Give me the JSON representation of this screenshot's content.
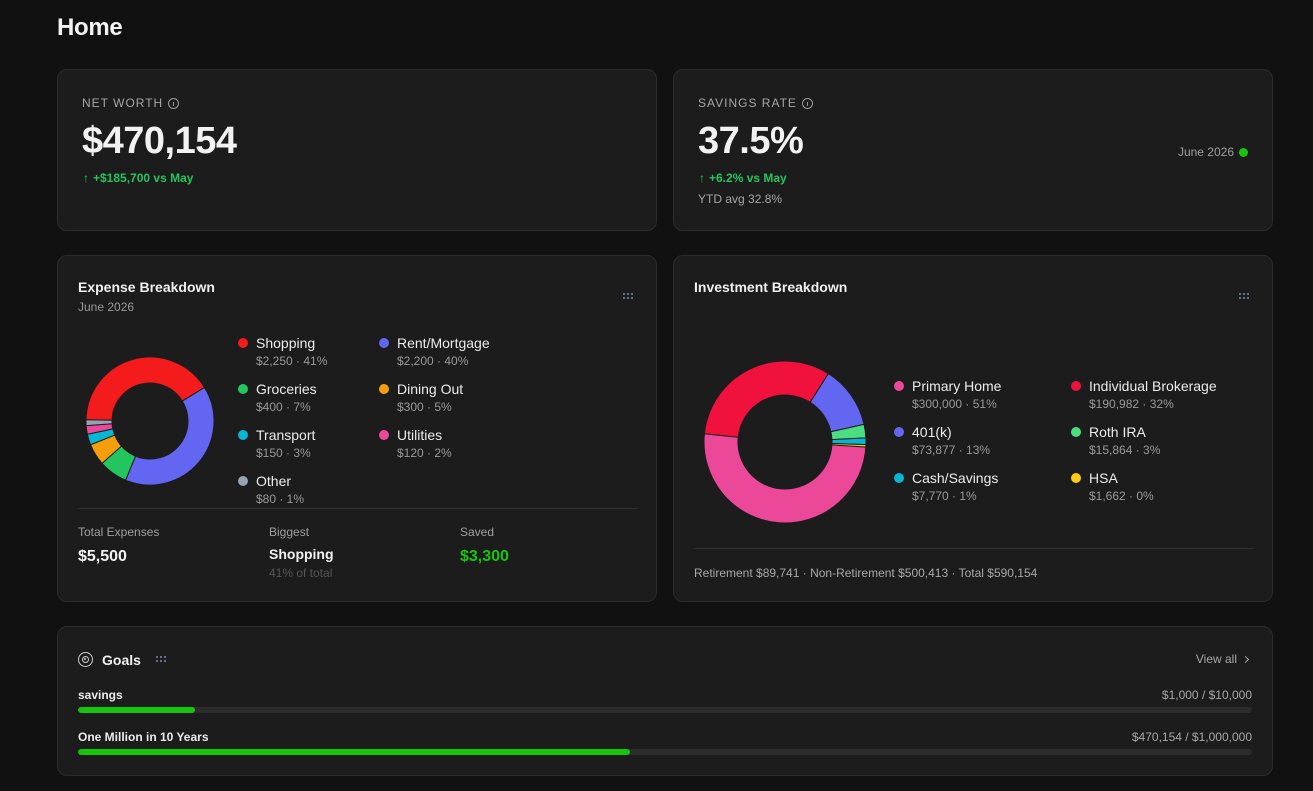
{
  "page": {
    "title": "Home"
  },
  "net_worth": {
    "label": "NET WORTH",
    "value": "$470,154",
    "delta": "+$185,700 vs May"
  },
  "savings_rate": {
    "label": "SAVINGS RATE",
    "value": "37.5%",
    "delta": "+6.2% vs May",
    "ytd": "YTD avg 32.8%",
    "month": "June 2026"
  },
  "expense": {
    "title": "Expense Breakdown",
    "subtitle": "June 2026",
    "items": [
      {
        "name": "Shopping",
        "detail": "$2,250 · 41%"
      },
      {
        "name": "Rent/Mortgage",
        "detail": "$2,200 · 40%"
      },
      {
        "name": "Groceries",
        "detail": "$400 · 7%"
      },
      {
        "name": "Dining Out",
        "detail": "$300 · 5%"
      },
      {
        "name": "Transport",
        "detail": "$150 · 3%"
      },
      {
        "name": "Utilities",
        "detail": "$120 · 2%"
      },
      {
        "name": "Other",
        "detail": "$80 · 1%"
      }
    ],
    "stats": {
      "total_label": "Total Expenses",
      "total_value": "$5,500",
      "biggest_label": "Biggest",
      "biggest_value": "Shopping",
      "biggest_note": "41% of total",
      "saved_label": "Saved",
      "saved_value": "$3,300"
    }
  },
  "investment": {
    "title": "Investment Breakdown",
    "items": [
      {
        "name": "Primary Home",
        "detail": "$300,000 · 51%"
      },
      {
        "name": "Individual Brokerage",
        "detail": "$190,982 · 32%"
      },
      {
        "name": "401(k)",
        "detail": "$73,877 · 13%"
      },
      {
        "name": "Roth IRA",
        "detail": "$15,864 · 3%"
      },
      {
        "name": "Cash/Savings",
        "detail": "$7,770 · 1%"
      },
      {
        "name": "HSA",
        "detail": "$1,662 · 0%"
      }
    ],
    "footer": "Retirement $89,741 · Non-Retirement $500,413 · Total $590,154"
  },
  "goals": {
    "title": "Goals",
    "view_all": "View all",
    "items": [
      {
        "label": "savings",
        "amount": "$1,000 / $10,000",
        "progress": 0.1
      },
      {
        "label": "One Million in 10 Years",
        "amount": "$470,154 / $1,000,000",
        "progress": 0.47
      }
    ]
  },
  "chart_data": [
    {
      "type": "pie",
      "title": "Expense Breakdown",
      "categories": [
        "Shopping",
        "Rent/Mortgage",
        "Groceries",
        "Dining Out",
        "Transport",
        "Utilities",
        "Other"
      ],
      "values": [
        2250,
        2200,
        400,
        300,
        150,
        120,
        80
      ],
      "colors": [
        "#f31b1b",
        "#6366f1",
        "#22c55e",
        "#f59e0b",
        "#06b6d4",
        "#ec4899",
        "#94a3b8"
      ]
    },
    {
      "type": "pie",
      "title": "Investment Breakdown",
      "categories": [
        "Primary Home",
        "Individual Brokerage",
        "401(k)",
        "Roth IRA",
        "Cash/Savings",
        "HSA"
      ],
      "values": [
        300000,
        190982,
        73877,
        15864,
        7770,
        1662
      ],
      "colors": [
        "#ec4899",
        "#f0113d",
        "#6366f1",
        "#4ade80",
        "#06b6d4",
        "#facc15"
      ]
    }
  ]
}
